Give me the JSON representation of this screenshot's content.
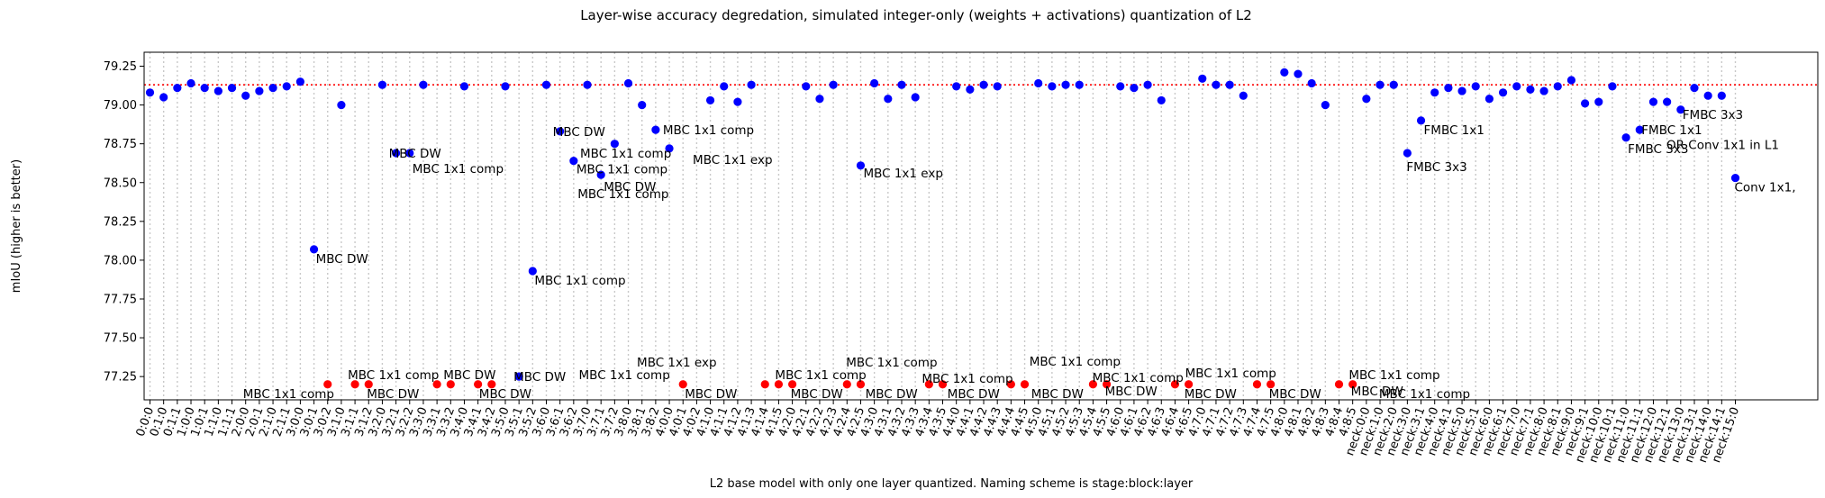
{
  "chart_data": {
    "type": "scatter",
    "title": "Layer-wise accuracy degredation, simulated integer-only (weights + activations) quantization of L2",
    "xlabel": "L2 base model with only one layer quantized. Naming scheme is stage:block:layer",
    "ylabel": "mIoU (higher is better)",
    "ylim": [
      77.1,
      79.34
    ],
    "yticks": [
      77.25,
      77.5,
      77.75,
      78.0,
      78.25,
      78.5,
      78.75,
      79.0,
      79.25
    ],
    "ytick_labels": [
      "77.25",
      "77.50",
      "77.75",
      "78.00",
      "78.25",
      "78.50",
      "78.75",
      "79.00",
      "79.25"
    ],
    "baseline": {
      "value": 79.13,
      "color": "#ff0000"
    },
    "grid": "vertical dotted",
    "categories": [
      "0:0:0",
      "0:1:0",
      "0:1:1",
      "1:0:0",
      "1:0:1",
      "1:1:0",
      "1:1:1",
      "2:0:0",
      "2:0:1",
      "2:1:0",
      "2:1:1",
      "3:0:0",
      "3:0:1",
      "3:0:2",
      "3:1:0",
      "3:1:1",
      "3:1:2",
      "3:2:0",
      "3:2:1",
      "3:2:2",
      "3:3:0",
      "3:3:1",
      "3:3:2",
      "3:4:0",
      "3:4:1",
      "3:4:2",
      "3:5:0",
      "3:5:1",
      "3:5:2",
      "3:6:0",
      "3:6:1",
      "3:6:2",
      "3:7:0",
      "3:7:1",
      "3:7:2",
      "3:8:0",
      "3:8:1",
      "3:8:2",
      "4:0:0",
      "4:0:1",
      "4:0:2",
      "4:1:0",
      "4:1:1",
      "4:1:2",
      "4:1:3",
      "4:1:4",
      "4:1:5",
      "4:2:0",
      "4:2:1",
      "4:2:2",
      "4:2:3",
      "4:2:4",
      "4:2:5",
      "4:3:0",
      "4:3:1",
      "4:3:2",
      "4:3:3",
      "4:3:4",
      "4:3:5",
      "4:4:0",
      "4:4:1",
      "4:4:2",
      "4:4:3",
      "4:4:4",
      "4:4:5",
      "4:5:0",
      "4:5:1",
      "4:5:2",
      "4:5:3",
      "4:5:4",
      "4:5:5",
      "4:6:0",
      "4:6:1",
      "4:6:2",
      "4:6:3",
      "4:6:4",
      "4:6:5",
      "4:7:0",
      "4:7:1",
      "4:7:2",
      "4:7:3",
      "4:7:4",
      "4:7:5",
      "4:8:0",
      "4:8:1",
      "4:8:2",
      "4:8:3",
      "4:8:4",
      "4:8:5",
      "neck:0:0",
      "neck:1:0",
      "neck:2:0",
      "neck:3:0",
      "neck:3:1",
      "neck:4:0",
      "neck:4:1",
      "neck:5:0",
      "neck:5:1",
      "neck:6:0",
      "neck:6:1",
      "neck:7:0",
      "neck:7:1",
      "neck:8:0",
      "neck:8:1",
      "neck:9:0",
      "neck:9:1",
      "neck:10:0",
      "neck:10:1",
      "neck:11:0",
      "neck:11:1",
      "neck:12:0",
      "neck:12:1",
      "neck:13:0",
      "neck:13:1",
      "neck:14:0",
      "neck:14:1",
      "neck:15:0"
    ],
    "series": [
      {
        "color": "#0000ff",
        "points": [
          {
            "x": "0:0:0",
            "y": 79.08
          },
          {
            "x": "0:1:0",
            "y": 79.05
          },
          {
            "x": "0:1:1",
            "y": 79.11
          },
          {
            "x": "1:0:0",
            "y": 79.14
          },
          {
            "x": "1:0:1",
            "y": 79.11
          },
          {
            "x": "1:1:0",
            "y": 79.09
          },
          {
            "x": "1:1:1",
            "y": 79.11
          },
          {
            "x": "2:0:0",
            "y": 79.06
          },
          {
            "x": "2:0:1",
            "y": 79.09
          },
          {
            "x": "2:1:0",
            "y": 79.11
          },
          {
            "x": "2:1:1",
            "y": 79.12
          },
          {
            "x": "3:0:0",
            "y": 79.15
          },
          {
            "x": "3:0:1",
            "y": 78.07
          },
          {
            "x": "3:1:0",
            "y": 79.0
          },
          {
            "x": "3:2:0",
            "y": 79.13
          },
          {
            "x": "3:2:1",
            "y": 78.69
          },
          {
            "x": "3:2:2",
            "y": 78.69
          },
          {
            "x": "3:3:0",
            "y": 79.13
          },
          {
            "x": "3:4:0",
            "y": 79.12
          },
          {
            "x": "3:5:0",
            "y": 79.12
          },
          {
            "x": "3:5:1",
            "y": 77.25
          },
          {
            "x": "3:5:2",
            "y": 77.93
          },
          {
            "x": "3:6:0",
            "y": 79.13
          },
          {
            "x": "3:6:1",
            "y": 78.83
          },
          {
            "x": "3:6:2",
            "y": 78.64
          },
          {
            "x": "3:7:0",
            "y": 79.13
          },
          {
            "x": "3:7:1",
            "y": 78.55
          },
          {
            "x": "3:7:2",
            "y": 78.75
          },
          {
            "x": "3:8:0",
            "y": 79.14
          },
          {
            "x": "3:8:1",
            "y": 79.0
          },
          {
            "x": "3:8:2",
            "y": 78.84
          },
          {
            "x": "4:0:0",
            "y": 78.72
          },
          {
            "x": "4:1:0",
            "y": 79.03
          },
          {
            "x": "4:1:1",
            "y": 79.12
          },
          {
            "x": "4:1:2",
            "y": 79.02
          },
          {
            "x": "4:1:3",
            "y": 79.13
          },
          {
            "x": "4:2:1",
            "y": 79.12
          },
          {
            "x": "4:2:2",
            "y": 79.04
          },
          {
            "x": "4:2:3",
            "y": 79.13
          },
          {
            "x": "4:2:5",
            "y": 78.61
          },
          {
            "x": "4:3:0",
            "y": 79.14
          },
          {
            "x": "4:3:1",
            "y": 79.04
          },
          {
            "x": "4:3:2",
            "y": 79.13
          },
          {
            "x": "4:3:3",
            "y": 79.05
          },
          {
            "x": "4:4:0",
            "y": 79.12
          },
          {
            "x": "4:4:1",
            "y": 79.1
          },
          {
            "x": "4:4:2",
            "y": 79.13
          },
          {
            "x": "4:4:3",
            "y": 79.12
          },
          {
            "x": "4:5:0",
            "y": 79.14
          },
          {
            "x": "4:5:1",
            "y": 79.12
          },
          {
            "x": "4:5:2",
            "y": 79.13
          },
          {
            "x": "4:5:3",
            "y": 79.13
          },
          {
            "x": "4:6:0",
            "y": 79.12
          },
          {
            "x": "4:6:1",
            "y": 79.11
          },
          {
            "x": "4:6:2",
            "y": 79.13
          },
          {
            "x": "4:6:3",
            "y": 79.03
          },
          {
            "x": "4:7:0",
            "y": 79.17
          },
          {
            "x": "4:7:1",
            "y": 79.13
          },
          {
            "x": "4:7:2",
            "y": 79.13
          },
          {
            "x": "4:7:3",
            "y": 79.06
          },
          {
            "x": "4:8:0",
            "y": 79.21
          },
          {
            "x": "4:8:1",
            "y": 79.2
          },
          {
            "x": "4:8:2",
            "y": 79.14
          },
          {
            "x": "4:8:3",
            "y": 79.0
          },
          {
            "x": "neck:0:0",
            "y": 79.04
          },
          {
            "x": "neck:1:0",
            "y": 79.13
          },
          {
            "x": "neck:2:0",
            "y": 79.13
          },
          {
            "x": "neck:3:0",
            "y": 78.69
          },
          {
            "x": "neck:3:1",
            "y": 78.9
          },
          {
            "x": "neck:4:0",
            "y": 79.08
          },
          {
            "x": "neck:4:1",
            "y": 79.11
          },
          {
            "x": "neck:5:0",
            "y": 79.09
          },
          {
            "x": "neck:5:1",
            "y": 79.12
          },
          {
            "x": "neck:6:0",
            "y": 79.04
          },
          {
            "x": "neck:6:1",
            "y": 79.08
          },
          {
            "x": "neck:7:0",
            "y": 79.12
          },
          {
            "x": "neck:7:1",
            "y": 79.1
          },
          {
            "x": "neck:8:0",
            "y": 79.09
          },
          {
            "x": "neck:8:1",
            "y": 79.12
          },
          {
            "x": "neck:9:0",
            "y": 79.16
          },
          {
            "x": "neck:9:1",
            "y": 79.01
          },
          {
            "x": "neck:10:0",
            "y": 79.02
          },
          {
            "x": "neck:10:1",
            "y": 79.12
          },
          {
            "x": "neck:11:0",
            "y": 78.79
          },
          {
            "x": "neck:11:1",
            "y": 78.84
          },
          {
            "x": "neck:12:0",
            "y": 79.02
          },
          {
            "x": "neck:12:1",
            "y": 79.02
          },
          {
            "x": "neck:13:0",
            "y": 78.97
          },
          {
            "x": "neck:13:1",
            "y": 79.11
          },
          {
            "x": "neck:14:0",
            "y": 79.06
          },
          {
            "x": "neck:14:1",
            "y": 79.06
          },
          {
            "x": "neck:15:0",
            "y": 78.53
          }
        ]
      },
      {
        "color": "#ff0000",
        "points": [
          {
            "x": "3:0:2",
            "y": 77.2
          },
          {
            "x": "3:1:1",
            "y": 77.2
          },
          {
            "x": "3:1:2",
            "y": 77.2
          },
          {
            "x": "3:3:1",
            "y": 77.2
          },
          {
            "x": "3:3:2",
            "y": 77.2
          },
          {
            "x": "3:4:1",
            "y": 77.2
          },
          {
            "x": "3:4:2",
            "y": 77.2
          },
          {
            "x": "4:0:1",
            "y": 77.2
          },
          {
            "x": "4:1:4",
            "y": 77.2
          },
          {
            "x": "4:1:5",
            "y": 77.2
          },
          {
            "x": "4:2:0",
            "y": 77.2
          },
          {
            "x": "4:2:4",
            "y": 77.2
          },
          {
            "x": "4:2:5",
            "y": 77.2
          },
          {
            "x": "4:3:4",
            "y": 77.2
          },
          {
            "x": "4:3:5",
            "y": 77.2
          },
          {
            "x": "4:4:4",
            "y": 77.2
          },
          {
            "x": "4:4:5",
            "y": 77.2
          },
          {
            "x": "4:5:4",
            "y": 77.2
          },
          {
            "x": "4:5:5",
            "y": 77.2
          },
          {
            "x": "4:6:4",
            "y": 77.2
          },
          {
            "x": "4:6:5",
            "y": 77.2
          },
          {
            "x": "4:7:4",
            "y": 77.2
          },
          {
            "x": "4:7:5",
            "y": 77.2
          },
          {
            "x": "4:8:4",
            "y": 77.2
          },
          {
            "x": "4:8:5",
            "y": 77.2
          }
        ]
      }
    ],
    "annotations": [
      {
        "text": "MBC DW",
        "x": "3:0:1",
        "y": 78.07,
        "dx": 2,
        "dy": 15
      },
      {
        "text": "MBC 1x1 comp",
        "x": "3:0:2",
        "y": 77.2,
        "dx": -94,
        "dy": 15
      },
      {
        "text": "MBC 1x1 comp",
        "x": "3:1:1",
        "y": 77.2,
        "dx": -8,
        "dy": -6
      },
      {
        "text": "MBC DW",
        "x": "3:1:2",
        "y": 77.2,
        "dx": -2,
        "dy": 15
      },
      {
        "text": "MBC DW",
        "x": "3:2:1",
        "y": 78.69,
        "dx": -8,
        "dy": 5
      },
      {
        "text": "MBC 1x1 comp",
        "x": "3:2:2",
        "y": 78.69,
        "dx": 3,
        "dy": 22
      },
      {
        "text": "MBC DW",
        "x": "3:3:2",
        "y": 77.2,
        "dx": -8,
        "dy": -6
      },
      {
        "text": "MBC DW",
        "x": "3:4:2",
        "y": 77.2,
        "dx": -14,
        "dy": 15
      },
      {
        "text": "MBC DW",
        "x": "3:5:1",
        "y": 77.25,
        "dx": -6,
        "dy": 5
      },
      {
        "text": "MBC 1x1 comp",
        "x": "3:5:2",
        "y": 77.93,
        "dx": 2,
        "dy": 15
      },
      {
        "text": "MBC DW",
        "x": "3:6:1",
        "y": 78.83,
        "dx": -8,
        "dy": 5
      },
      {
        "text": "MBC 1x1 comp",
        "x": "3:6:2",
        "y": 78.64,
        "dx": 3,
        "dy": 14
      },
      {
        "text": "MBC 1x1 comp",
        "x": "3:7:0",
        "y": 79.13,
        "dx": -8,
        "dy": 81
      },
      {
        "text": "MBC DW",
        "x": "3:7:1",
        "y": 78.55,
        "dx": 3,
        "dy": 18
      },
      {
        "text": "MBC 1x1 comp",
        "x": "3:7:1",
        "y": 78.55,
        "dx": -26,
        "dy": 26
      },
      {
        "text": "MBC 1x1 comp",
        "x": "3:8:2",
        "y": 78.84,
        "dx": 8,
        "dy": 5
      },
      {
        "text": "MBC 1x1 comp",
        "x": "3:8:0",
        "y": 77.2,
        "dx": -55,
        "dy": -6
      },
      {
        "text": "MBC 1x1 exp",
        "x": "4:0:0",
        "y": 77.2,
        "dx": -36,
        "dy": -20
      },
      {
        "text": "MBC 1x1 exp",
        "x": "4:0:0",
        "y": 78.72,
        "dx": 26,
        "dy": 17
      },
      {
        "text": "MBC DW",
        "x": "4:0:1",
        "y": 77.2,
        "dx": 2,
        "dy": 15
      },
      {
        "text": "MBC 1x1 comp",
        "x": "4:1:5",
        "y": 77.2,
        "dx": -4,
        "dy": -6
      },
      {
        "text": "MBC DW",
        "x": "4:2:0",
        "y": 77.2,
        "dx": -2,
        "dy": 15
      },
      {
        "text": "MBC 1x1 exp",
        "x": "4:2:5",
        "y": 78.61,
        "dx": 3,
        "dy": 13
      },
      {
        "text": "MBC 1x1 comp",
        "x": "4:2:4",
        "y": 77.2,
        "dx": -1,
        "dy": -20
      },
      {
        "text": "MBC DW",
        "x": "4:3:0",
        "y": 77.2,
        "dx": -10,
        "dy": 15
      },
      {
        "text": "MBC 1x1 comp",
        "x": "4:3:4",
        "y": 77.2,
        "dx": -8,
        "dy": -2
      },
      {
        "text": "MBC DW",
        "x": "4:4:0",
        "y": 77.2,
        "dx": -10,
        "dy": 15
      },
      {
        "text": "MBC 1x1 comp",
        "x": "4:5:0",
        "y": 77.2,
        "dx": -10,
        "dy": -21
      },
      {
        "text": "MBC DW",
        "x": "4:5:0",
        "y": 77.2,
        "dx": -8,
        "dy": 15
      },
      {
        "text": "MBC 1x1 comp",
        "x": "4:5:5",
        "y": 77.2,
        "dx": -16,
        "dy": -3
      },
      {
        "text": "MBC DW",
        "x": "4:5:5",
        "y": 77.2,
        "dx": -2,
        "dy": 12
      },
      {
        "text": "MBC 1x1 comp",
        "x": "4:6:5",
        "y": 77.2,
        "dx": -4,
        "dy": -8
      },
      {
        "text": "MBC DW",
        "x": "4:7:0",
        "y": 77.2,
        "dx": -20,
        "dy": 15
      },
      {
        "text": "MBC DW",
        "x": "4:7:5",
        "y": 77.2,
        "dx": -2,
        "dy": 15
      },
      {
        "text": "MBC 1x1 comp",
        "x": "4:8:3",
        "y": 77.2,
        "dx": 26,
        "dy": -6
      },
      {
        "text": "MBC DW",
        "x": "4:8:5",
        "y": 77.2,
        "dx": -2,
        "dy": 12
      },
      {
        "text": "MBC 1x1 comp",
        "x": "neck:0:0",
        "y": 77.2,
        "dx": 14,
        "dy": 15
      },
      {
        "text": "FMBC 1x1",
        "x": "neck:3:1",
        "y": 78.9,
        "dx": 3,
        "dy": 15
      },
      {
        "text": "FMBC 3x3",
        "x": "neck:3:0",
        "y": 78.69,
        "dx": -1,
        "dy": 20
      },
      {
        "text": "FMBC 1x1",
        "x": "neck:11:1",
        "y": 78.84,
        "dx": 2,
        "dy": 5
      },
      {
        "text": "FMBC 3x3",
        "x": "neck:11:0",
        "y": 78.79,
        "dx": 2,
        "dy": 17
      },
      {
        "text": "FMBC 3x3",
        "x": "neck:13:0",
        "y": 78.97,
        "dx": 2,
        "dy": 10
      },
      {
        "text": "OR Conv 1x1 in L1",
        "x": "neck:13:1",
        "y": 79.11,
        "dx": -31,
        "dy": 68
      },
      {
        "text": "Conv 1x1,",
        "x": "neck:15:0",
        "y": 78.53,
        "dx": -1,
        "dy": 15
      }
    ]
  }
}
